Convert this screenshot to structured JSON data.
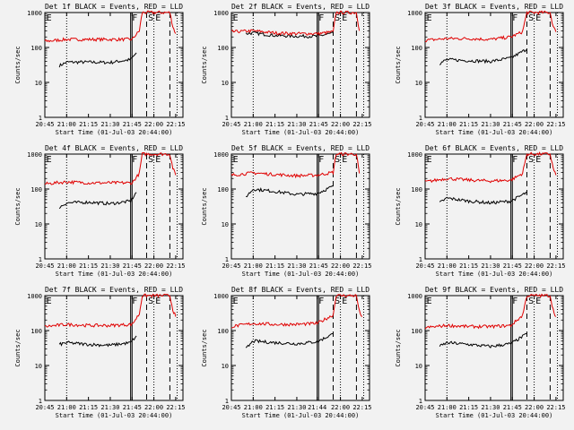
{
  "chart_data": [
    {
      "type": "line",
      "title": "Det 1f BLACK = Events, RED = LLD",
      "xlabel": "Start Time (01-Jul-03 20:44:00)",
      "ylabel": "Counts/sec",
      "log_y": true,
      "ylim": [
        1,
        1000
      ],
      "xlim": [
        "20:45",
        "22:20"
      ],
      "x_ticks": [
        "20:45",
        "21:00",
        "21:15",
        "21:30",
        "21:45",
        "22:00",
        "22:15"
      ],
      "y_ticks": [
        "1",
        "10",
        "100",
        "1000"
      ],
      "markers": [
        "E",
        "F",
        "S",
        "E"
      ],
      "series": [
        {
          "name": "Events",
          "color": "#000000",
          "x": [
            "20:55",
            "21:00",
            "21:15",
            "21:30",
            "21:44",
            "21:48"
          ],
          "values": [
            30,
            38,
            38,
            37,
            45,
            70
          ]
        },
        {
          "name": "LLD",
          "color": "#e00000",
          "x": [
            "20:45",
            "21:00",
            "21:15",
            "21:30",
            "21:45",
            "21:50",
            "21:52",
            "22:11",
            "22:13",
            "22:15"
          ],
          "values": [
            150,
            170,
            170,
            170,
            170,
            300,
            1000,
            1000,
            400,
            250
          ]
        }
      ]
    },
    {
      "type": "line",
      "title": "Det 2f BLACK = Events, RED = LLD",
      "xlabel": "Start Time (01-Jul-03 20:44:00)",
      "ylabel": "Counts/sec",
      "log_y": true,
      "ylim": [
        1,
        1000
      ],
      "xlim": [
        "20:45",
        "22:20"
      ],
      "x_ticks": [
        "20:45",
        "21:00",
        "21:15",
        "21:30",
        "21:45",
        "22:00",
        "22:15"
      ],
      "y_ticks": [
        "1",
        "10",
        "100",
        "1000"
      ],
      "markers": [
        "E",
        "F",
        "S",
        "E"
      ],
      "series": [
        {
          "name": "Events",
          "color": "#000000",
          "x": [
            "20:55",
            "21:00",
            "21:15",
            "21:30",
            "21:44",
            "21:55"
          ],
          "values": [
            250,
            260,
            220,
            210,
            210,
            260
          ]
        },
        {
          "name": "LLD",
          "color": "#e00000",
          "x": [
            "20:45",
            "21:00",
            "21:15",
            "21:30",
            "21:45",
            "21:55",
            "21:57",
            "22:11",
            "22:13"
          ],
          "values": [
            280,
            300,
            260,
            250,
            250,
            280,
            1000,
            1000,
            300
          ]
        }
      ]
    },
    {
      "type": "line",
      "title": "Det 3f BLACK = Events, RED = LLD",
      "xlabel": "Start Time (01-Jul-03 20:44:00)",
      "ylabel": "Counts/sec",
      "log_y": true,
      "ylim": [
        1,
        1000
      ],
      "xlim": [
        "20:45",
        "22:20"
      ],
      "x_ticks": [
        "20:45",
        "21:00",
        "21:15",
        "21:30",
        "21:45",
        "22:00",
        "22:15"
      ],
      "y_ticks": [
        "1",
        "10",
        "100",
        "1000"
      ],
      "markers": [
        "E",
        "F",
        "S",
        "E"
      ],
      "series": [
        {
          "name": "Events",
          "color": "#000000",
          "x": [
            "20:55",
            "21:00",
            "21:15",
            "21:30",
            "21:44",
            "21:55"
          ],
          "values": [
            35,
            45,
            42,
            40,
            50,
            90
          ]
        },
        {
          "name": "LLD",
          "color": "#e00000",
          "x": [
            "20:45",
            "21:00",
            "21:15",
            "21:30",
            "21:44",
            "21:52",
            "21:55",
            "22:11",
            "22:13",
            "22:15"
          ],
          "values": [
            160,
            180,
            180,
            170,
            200,
            280,
            1000,
            1000,
            400,
            280
          ]
        }
      ]
    },
    {
      "type": "line",
      "title": "Det 4f BLACK = Events, RED = LLD",
      "xlabel": "Start Time (01-Jul-03 20:44:00)",
      "ylabel": "Counts/sec",
      "log_y": true,
      "ylim": [
        1,
        1000
      ],
      "xlim": [
        "20:45",
        "22:20"
      ],
      "x_ticks": [
        "20:45",
        "21:00",
        "21:15",
        "21:30",
        "21:45",
        "22:00",
        "22:15"
      ],
      "y_ticks": [
        "1",
        "10",
        "100",
        "1000"
      ],
      "markers": [
        "E",
        "F",
        "S",
        "E"
      ],
      "series": [
        {
          "name": "Events",
          "color": "#000000",
          "x": [
            "20:55",
            "21:00",
            "21:15",
            "21:30",
            "21:44",
            "21:48"
          ],
          "values": [
            30,
            40,
            42,
            38,
            45,
            80
          ]
        },
        {
          "name": "LLD",
          "color": "#e00000",
          "x": [
            "20:45",
            "21:00",
            "21:15",
            "21:30",
            "21:45",
            "21:50",
            "21:52",
            "22:11",
            "22:13",
            "22:15"
          ],
          "values": [
            140,
            160,
            150,
            150,
            150,
            280,
            1000,
            1000,
            400,
            250
          ]
        }
      ]
    },
    {
      "type": "line",
      "title": "Det 5f BLACK = Events, RED = LLD",
      "xlabel": "Start Time (01-Jul-03 20:44:00)",
      "ylabel": "Counts/sec",
      "log_y": true,
      "ylim": [
        1,
        1000
      ],
      "xlim": [
        "20:45",
        "22:20"
      ],
      "x_ticks": [
        "20:45",
        "21:00",
        "21:15",
        "21:30",
        "21:45",
        "22:00",
        "22:15"
      ],
      "y_ticks": [
        "1",
        "10",
        "100",
        "1000"
      ],
      "markers": [
        "E",
        "F",
        "S",
        "E"
      ],
      "series": [
        {
          "name": "Events",
          "color": "#000000",
          "x": [
            "20:55",
            "21:00",
            "21:15",
            "21:30",
            "21:44",
            "21:55"
          ],
          "values": [
            60,
            100,
            85,
            70,
            75,
            120
          ]
        },
        {
          "name": "LLD",
          "color": "#e00000",
          "x": [
            "20:45",
            "21:00",
            "21:15",
            "21:30",
            "21:44",
            "21:55",
            "21:57",
            "22:11",
            "22:13"
          ],
          "values": [
            250,
            290,
            260,
            240,
            250,
            300,
            1000,
            1000,
            280
          ]
        }
      ]
    },
    {
      "type": "line",
      "title": "Det 6f BLACK = Events, RED = LLD",
      "xlabel": "Start Time (01-Jul-03 20:44:00)",
      "ylabel": "Counts/sec",
      "log_y": true,
      "ylim": [
        1,
        1000
      ],
      "xlim": [
        "20:45",
        "22:20"
      ],
      "x_ticks": [
        "20:45",
        "21:00",
        "21:15",
        "21:30",
        "21:45",
        "22:00",
        "22:15"
      ],
      "y_ticks": [
        "1",
        "10",
        "100",
        "1000"
      ],
      "markers": [
        "E",
        "F",
        "S",
        "E"
      ],
      "series": [
        {
          "name": "Events",
          "color": "#000000",
          "x": [
            "20:55",
            "21:00",
            "21:15",
            "21:30",
            "21:44",
            "21:55"
          ],
          "values": [
            40,
            55,
            45,
            40,
            45,
            80
          ]
        },
        {
          "name": "LLD",
          "color": "#e00000",
          "x": [
            "20:45",
            "21:00",
            "21:15",
            "21:30",
            "21:44",
            "21:52",
            "21:55",
            "22:11",
            "22:13",
            "22:15"
          ],
          "values": [
            160,
            200,
            180,
            170,
            180,
            280,
            1000,
            1000,
            400,
            250
          ]
        }
      ]
    },
    {
      "type": "line",
      "title": "Det 7f BLACK = Events, RED = LLD",
      "xlabel": "Start Time (01-Jul-03 20:44:00)",
      "ylabel": "Counts/sec",
      "log_y": true,
      "ylim": [
        1,
        1000
      ],
      "xlim": [
        "20:45",
        "22:20"
      ],
      "x_ticks": [
        "20:45",
        "21:00",
        "21:15",
        "21:30",
        "21:45",
        "22:00",
        "22:15"
      ],
      "y_ticks": [
        "1",
        "10",
        "100",
        "1000"
      ],
      "markers": [
        "E",
        "F",
        "S",
        "E"
      ],
      "series": [
        {
          "name": "Events",
          "color": "#000000",
          "x": [
            "20:55",
            "21:00",
            "21:15",
            "21:30",
            "21:44",
            "21:48"
          ],
          "values": [
            40,
            45,
            40,
            38,
            45,
            70
          ]
        },
        {
          "name": "LLD",
          "color": "#e00000",
          "x": [
            "20:45",
            "21:00",
            "21:15",
            "21:30",
            "21:45",
            "21:50",
            "21:52",
            "22:11",
            "22:13",
            "22:15"
          ],
          "values": [
            130,
            150,
            140,
            140,
            150,
            300,
            1000,
            1000,
            400,
            250
          ]
        }
      ]
    },
    {
      "type": "line",
      "title": "Det 8f BLACK = Events, RED = LLD",
      "xlabel": "Start Time (01-Jul-03 20:44:00)",
      "ylabel": "Counts/sec",
      "log_y": true,
      "ylim": [
        1,
        1000
      ],
      "xlim": [
        "20:45",
        "22:20"
      ],
      "x_ticks": [
        "20:45",
        "21:00",
        "21:15",
        "21:30",
        "21:44",
        "22:00",
        "22:15"
      ],
      "y_ticks": [
        "1",
        "10",
        "100",
        "1000"
      ],
      "markers": [
        "E",
        "F",
        "S",
        "E"
      ],
      "series": [
        {
          "name": "Events",
          "color": "#000000",
          "x": [
            "20:55",
            "21:00",
            "21:15",
            "21:30",
            "21:44",
            "21:55"
          ],
          "values": [
            30,
            50,
            45,
            42,
            48,
            80
          ]
        },
        {
          "name": "LLD",
          "color": "#e00000",
          "x": [
            "20:45",
            "21:00",
            "21:15",
            "21:30",
            "21:44",
            "21:55",
            "21:57",
            "22:11",
            "22:13",
            "22:15"
          ],
          "values": [
            130,
            160,
            150,
            150,
            160,
            280,
            1000,
            1000,
            350,
            250
          ]
        }
      ]
    },
    {
      "type": "line",
      "title": "Det 9f BLACK = Events, RED = LLD",
      "xlabel": "Start Time (01-Jul-03 20:44:00)",
      "ylabel": "Counts/sec",
      "log_y": true,
      "ylim": [
        1,
        1000
      ],
      "xlim": [
        "20:45",
        "22:20"
      ],
      "x_ticks": [
        "20:45",
        "21:00",
        "21:15",
        "21:30",
        "21:45",
        "22:00",
        "22:15"
      ],
      "y_ticks": [
        "1",
        "10",
        "100",
        "1000"
      ],
      "markers": [
        "E",
        "F",
        "S",
        "E"
      ],
      "series": [
        {
          "name": "Events",
          "color": "#000000",
          "x": [
            "20:55",
            "21:00",
            "21:15",
            "21:30",
            "21:44",
            "21:55"
          ],
          "values": [
            35,
            45,
            40,
            35,
            42,
            80
          ]
        },
        {
          "name": "LLD",
          "color": "#e00000",
          "x": [
            "20:45",
            "21:00",
            "21:15",
            "21:30",
            "21:44",
            "21:52",
            "21:55",
            "22:11",
            "22:13",
            "22:15"
          ],
          "values": [
            120,
            140,
            130,
            130,
            140,
            270,
            1000,
            1000,
            400,
            250
          ]
        }
      ]
    }
  ]
}
